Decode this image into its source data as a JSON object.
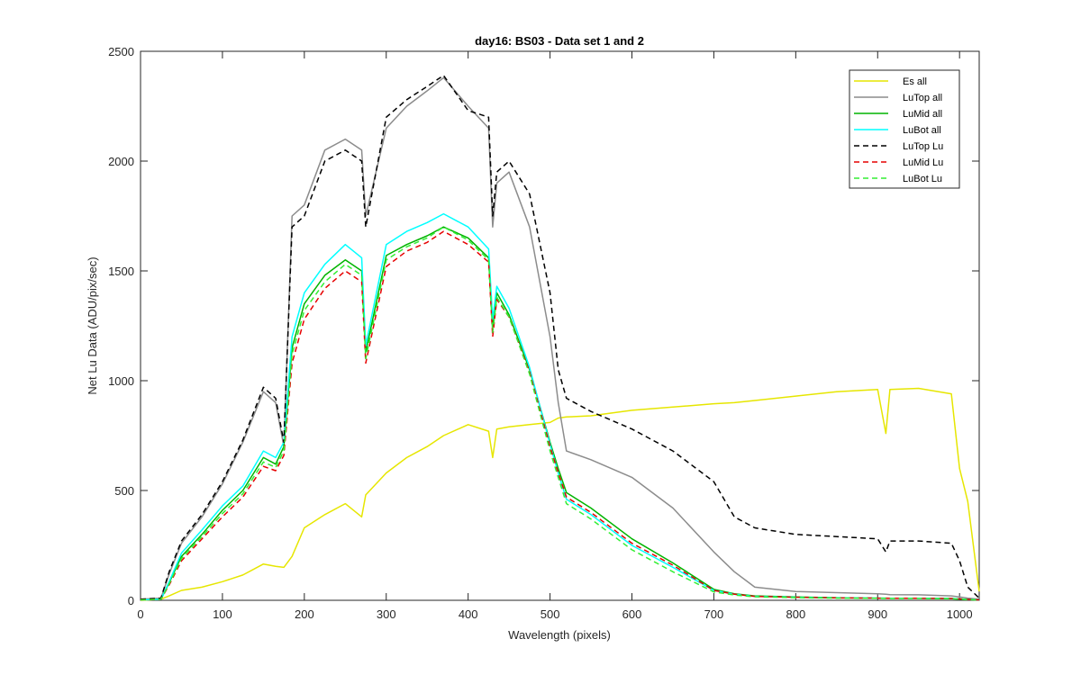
{
  "chart_data": {
    "type": "line",
    "title": "day16: BS03 - Data set 1 and 2",
    "xlabel": "Wavelength (pixels)",
    "ylabel": "Net Lu Data (ADU/pix/sec)",
    "xlim": [
      0,
      1024
    ],
    "ylim": [
      0,
      2500
    ],
    "xticks": [
      0,
      100,
      200,
      300,
      400,
      500,
      600,
      700,
      800,
      900,
      1000
    ],
    "yticks": [
      0,
      500,
      1000,
      1500,
      2000,
      2500
    ],
    "grid": false,
    "legend_position": "top-right",
    "x": [
      0,
      25,
      35,
      50,
      75,
      100,
      125,
      150,
      165,
      175,
      185,
      200,
      225,
      250,
      270,
      275,
      300,
      325,
      350,
      370,
      400,
      425,
      430,
      435,
      450,
      475,
      500,
      510,
      520,
      550,
      600,
      650,
      700,
      725,
      750,
      800,
      850,
      900,
      910,
      915,
      950,
      990,
      1000,
      1010,
      1024
    ],
    "series": [
      {
        "name": "Es  all",
        "color": "#e6e600",
        "dash": "solid",
        "values": [
          0,
          5,
          20,
          45,
          60,
          85,
          115,
          165,
          155,
          150,
          200,
          330,
          390,
          440,
          380,
          480,
          580,
          650,
          700,
          750,
          800,
          770,
          650,
          780,
          790,
          800,
          810,
          830,
          835,
          840,
          865,
          880,
          895,
          900,
          910,
          930,
          950,
          960,
          760,
          960,
          965,
          940,
          600,
          450,
          40
        ]
      },
      {
        "name": "LuTop  all",
        "color": "#8c8c8c",
        "dash": "solid",
        "values": [
          5,
          10,
          120,
          260,
          380,
          530,
          720,
          950,
          900,
          700,
          1750,
          1800,
          2050,
          2100,
          2050,
          1750,
          2150,
          2250,
          2320,
          2380,
          2250,
          2150,
          1700,
          1900,
          1950,
          1700,
          1200,
          900,
          680,
          640,
          560,
          420,
          220,
          130,
          60,
          40,
          35,
          30,
          28,
          26,
          25,
          20,
          15,
          10,
          5
        ]
      },
      {
        "name": "LuMid  all",
        "color": "#00b400",
        "dash": "solid",
        "values": [
          2,
          5,
          80,
          200,
          300,
          410,
          500,
          650,
          620,
          700,
          1150,
          1350,
          1480,
          1550,
          1500,
          1130,
          1570,
          1620,
          1660,
          1700,
          1650,
          1560,
          1250,
          1400,
          1300,
          1050,
          720,
          600,
          490,
          420,
          280,
          170,
          50,
          30,
          20,
          15,
          12,
          10,
          10,
          9,
          9,
          8,
          6,
          4,
          2
        ]
      },
      {
        "name": "LuBot  all",
        "color": "#00ffff",
        "dash": "solid",
        "values": [
          2,
          5,
          85,
          215,
          320,
          430,
          520,
          680,
          650,
          720,
          1200,
          1400,
          1530,
          1620,
          1560,
          1160,
          1620,
          1680,
          1720,
          1760,
          1700,
          1600,
          1280,
          1430,
          1330,
          1060,
          710,
          580,
          460,
          390,
          250,
          150,
          45,
          28,
          18,
          14,
          11,
          10,
          9,
          9,
          9,
          8,
          6,
          4,
          2
        ]
      },
      {
        "name": "LuTop  Lu",
        "color": "#000000",
        "dash": "dashed",
        "values": [
          5,
          10,
          130,
          270,
          390,
          540,
          730,
          970,
          920,
          720,
          1700,
          1750,
          2000,
          2050,
          2000,
          1700,
          2200,
          2280,
          2340,
          2390,
          2230,
          2200,
          1750,
          1950,
          2000,
          1850,
          1400,
          1050,
          920,
          860,
          780,
          680,
          540,
          380,
          330,
          300,
          290,
          280,
          220,
          270,
          270,
          260,
          180,
          60,
          10
        ]
      },
      {
        "name": "LuMid  Lu",
        "color": "#e60000",
        "dash": "dashed",
        "values": [
          2,
          5,
          70,
          180,
          280,
          380,
          470,
          610,
          590,
          660,
          1080,
          1280,
          1420,
          1500,
          1450,
          1080,
          1520,
          1590,
          1630,
          1680,
          1620,
          1540,
          1200,
          1370,
          1290,
          1040,
          700,
          580,
          470,
          400,
          260,
          160,
          45,
          28,
          18,
          14,
          11,
          10,
          9,
          9,
          9,
          8,
          6,
          4,
          2
        ]
      },
      {
        "name": "LuBot  Lu",
        "color": "#33ee33",
        "dash": "dashed",
        "values": [
          2,
          5,
          75,
          190,
          290,
          395,
          485,
          630,
          605,
          680,
          1120,
          1320,
          1450,
          1530,
          1480,
          1100,
          1550,
          1610,
          1650,
          1700,
          1640,
          1550,
          1220,
          1380,
          1290,
          1030,
          680,
          560,
          440,
          370,
          230,
          130,
          38,
          24,
          16,
          12,
          10,
          9,
          8,
          8,
          8,
          7,
          5,
          3,
          2
        ]
      }
    ]
  }
}
